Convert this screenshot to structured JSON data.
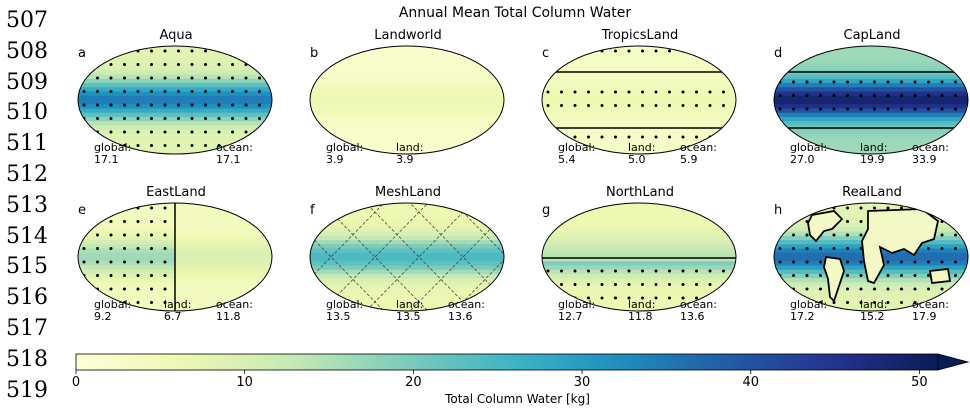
{
  "figure": {
    "title": "Annual Mean Total Column Water",
    "line_numbers": [
      "507",
      "508",
      "509",
      "510",
      "511",
      "512",
      "513",
      "514",
      "515",
      "516",
      "517",
      "518",
      "519"
    ]
  },
  "panels": [
    {
      "letter": "a",
      "title": "Aqua",
      "stats": [
        {
          "label": "global:",
          "value": "17.1"
        },
        {
          "label": "ocean:",
          "value": "17.1"
        }
      ],
      "overlay": "ocean-all"
    },
    {
      "letter": "b",
      "title": "Landworld",
      "stats": [
        {
          "label": "global:",
          "value": "3.9"
        },
        {
          "label": "land:",
          "value": "3.9"
        }
      ],
      "overlay": "none"
    },
    {
      "letter": "c",
      "title": "TropicsLand",
      "stats": [
        {
          "label": "global:",
          "value": "5.4"
        },
        {
          "label": "land:",
          "value": "5.0"
        },
        {
          "label": "ocean:",
          "value": "5.9"
        }
      ],
      "overlay": "tropics"
    },
    {
      "letter": "d",
      "title": "CapLand",
      "stats": [
        {
          "label": "global:",
          "value": "27.0"
        },
        {
          "label": "land:",
          "value": "19.9"
        },
        {
          "label": "ocean:",
          "value": "33.9"
        }
      ],
      "overlay": "cap"
    },
    {
      "letter": "e",
      "title": "EastLand",
      "stats": [
        {
          "label": "global:",
          "value": "9.2"
        },
        {
          "label": "land:",
          "value": "6.7"
        },
        {
          "label": "ocean:",
          "value": "11.8"
        }
      ],
      "overlay": "east"
    },
    {
      "letter": "f",
      "title": "MeshLand",
      "stats": [
        {
          "label": "global:",
          "value": "13.5"
        },
        {
          "label": "land:",
          "value": "13.5"
        },
        {
          "label": "ocean:",
          "value": "13.6"
        }
      ],
      "overlay": "mesh"
    },
    {
      "letter": "g",
      "title": "NorthLand",
      "stats": [
        {
          "label": "global:",
          "value": "12.7"
        },
        {
          "label": "land:",
          "value": "11.8"
        },
        {
          "label": "ocean:",
          "value": "13.6"
        }
      ],
      "overlay": "north"
    },
    {
      "letter": "h",
      "title": "RealLand",
      "stats": [
        {
          "label": "global:",
          "value": "17.2"
        },
        {
          "label": "land:",
          "value": "15.2"
        },
        {
          "label": "ocean:",
          "value": "17.9"
        }
      ],
      "overlay": "real"
    }
  ],
  "colorbar": {
    "label": "Total Column Water [kg]",
    "ticks": [
      "0",
      "10",
      "20",
      "30",
      "40",
      "50"
    ],
    "min": 0,
    "max": 50,
    "colormap": "YlGnBu",
    "extend": "max"
  },
  "chart_data": {
    "type": "heatmap",
    "title": "Annual Mean Total Column Water",
    "colorbar_label": "Total Column Water [kg]",
    "vmin": 0,
    "vmax": 50,
    "panels": [
      {
        "name": "Aqua",
        "global": 17.1,
        "ocean": 17.1,
        "equator_peak": 34,
        "pole": 8
      },
      {
        "name": "Landworld",
        "global": 3.9,
        "land": 3.9,
        "equator_peak": 6,
        "pole": 2
      },
      {
        "name": "TropicsLand",
        "global": 5.4,
        "land": 5.0,
        "ocean": 5.9,
        "equator_peak": 6,
        "pole": 3
      },
      {
        "name": "CapLand",
        "global": 27.0,
        "land": 19.9,
        "ocean": 33.9,
        "equator_peak": 48,
        "pole": 16
      },
      {
        "name": "EastLand",
        "global": 9.2,
        "land": 6.7,
        "ocean": 11.8,
        "equator_peak": 16,
        "pole": 4
      },
      {
        "name": "MeshLand",
        "global": 13.5,
        "land": 13.5,
        "ocean": 13.6,
        "equator_peak": 24,
        "pole": 6
      },
      {
        "name": "NorthLand",
        "global": 12.7,
        "land": 11.8,
        "ocean": 13.6,
        "equator_peak": 20,
        "pole": 6
      },
      {
        "name": "RealLand",
        "global": 17.2,
        "land": 15.2,
        "ocean": 17.9,
        "equator_peak": 36,
        "pole": 8
      }
    ]
  }
}
